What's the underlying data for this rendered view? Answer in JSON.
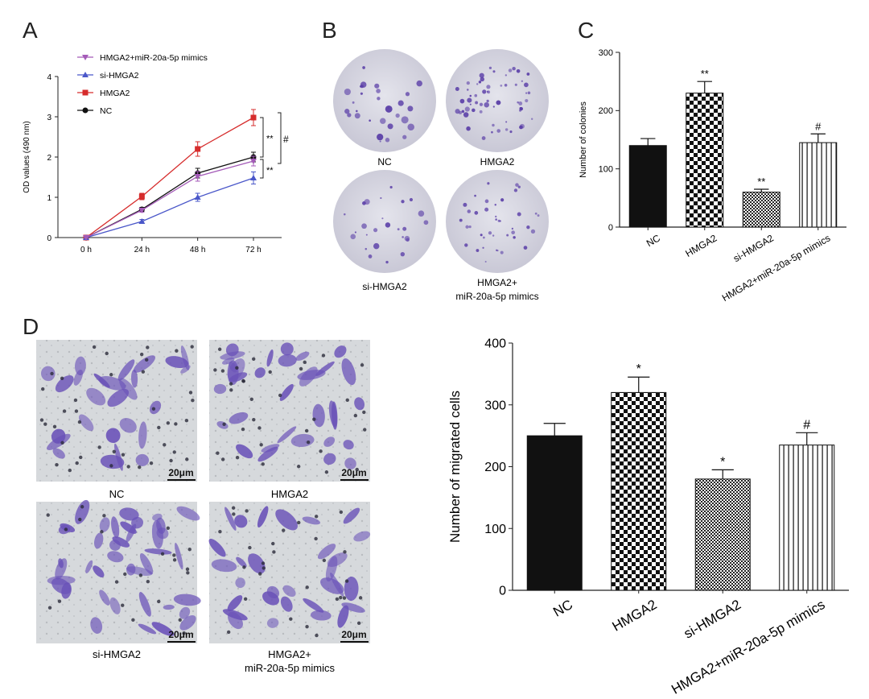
{
  "panel_letters": {
    "a": "A",
    "b": "B",
    "c": "C",
    "d": "D"
  },
  "plate_labels": [
    "NC",
    "HMGA2",
    "si-HMGA2",
    "HMGA2+",
    "miR-20a-5p mimics"
  ],
  "micro_labels": [
    "NC",
    "HMGA2",
    "si-HMGA2",
    "HMGA2+",
    "miR-20a-5p mimics"
  ],
  "scale_bar": "20μm",
  "colors": {
    "hmga2": "#d62c2c",
    "nc": "#111111",
    "si": "#4a57c9",
    "mimics": "#a45bb8",
    "stain": "#5b3fa8"
  },
  "chart_data": [
    {
      "type": "line",
      "ylabel": "OD values (490 nm)",
      "xlabel": "",
      "categories": [
        "0 h",
        "24 h",
        "48 h",
        "72 h"
      ],
      "ylim": [
        0,
        4
      ],
      "yticks": [
        "0",
        "1",
        "2",
        "3",
        "4"
      ],
      "series": [
        {
          "name": "HMGA2+miR-20a-5p mimics",
          "values": [
            0,
            0.68,
            1.52,
            1.9
          ],
          "errors": [
            0,
            0.05,
            0.12,
            0.12
          ],
          "marker": "triangle-down",
          "color": "#a45bb8"
        },
        {
          "name": "si-HMGA2",
          "values": [
            0,
            0.4,
            1.0,
            1.48
          ],
          "errors": [
            0,
            0.05,
            0.1,
            0.15
          ],
          "marker": "triangle-up",
          "color": "#4a57c9"
        },
        {
          "name": "HMGA2",
          "values": [
            0,
            1.02,
            2.2,
            2.98
          ],
          "errors": [
            0,
            0.08,
            0.18,
            0.2
          ],
          "marker": "square",
          "color": "#d62c2c"
        },
        {
          "name": "NC",
          "values": [
            0,
            0.7,
            1.6,
            2.0
          ],
          "errors": [
            0,
            0.05,
            0.12,
            0.12
          ],
          "marker": "circle",
          "color": "#111111"
        }
      ],
      "annotations": [
        "**",
        "**",
        "#"
      ],
      "legend": "top-left"
    },
    {
      "type": "bar",
      "ylabel": "Number of colonies",
      "categories": [
        "NC",
        "HMGA2",
        "si-HMGA2",
        "HMGA2+miR-20a-5p mimics"
      ],
      "values": [
        140,
        230,
        60,
        145
      ],
      "errors": [
        12,
        20,
        5,
        15
      ],
      "annotations": [
        "",
        "**",
        "**",
        "#"
      ],
      "ylim": [
        0,
        300
      ],
      "yticks": [
        "0",
        "100",
        "200",
        "300"
      ]
    },
    {
      "type": "bar",
      "ylabel": "Number of migrated cells",
      "categories": [
        "NC",
        "HMGA2",
        "si-HMGA2",
        "HMGA2+miR-20a-5p mimics"
      ],
      "values": [
        250,
        320,
        180,
        235
      ],
      "errors": [
        20,
        25,
        15,
        20
      ],
      "annotations": [
        "",
        "*",
        "*",
        "#"
      ],
      "ylim": [
        0,
        400
      ],
      "yticks": [
        "0",
        "100",
        "200",
        "300",
        "400"
      ]
    }
  ]
}
